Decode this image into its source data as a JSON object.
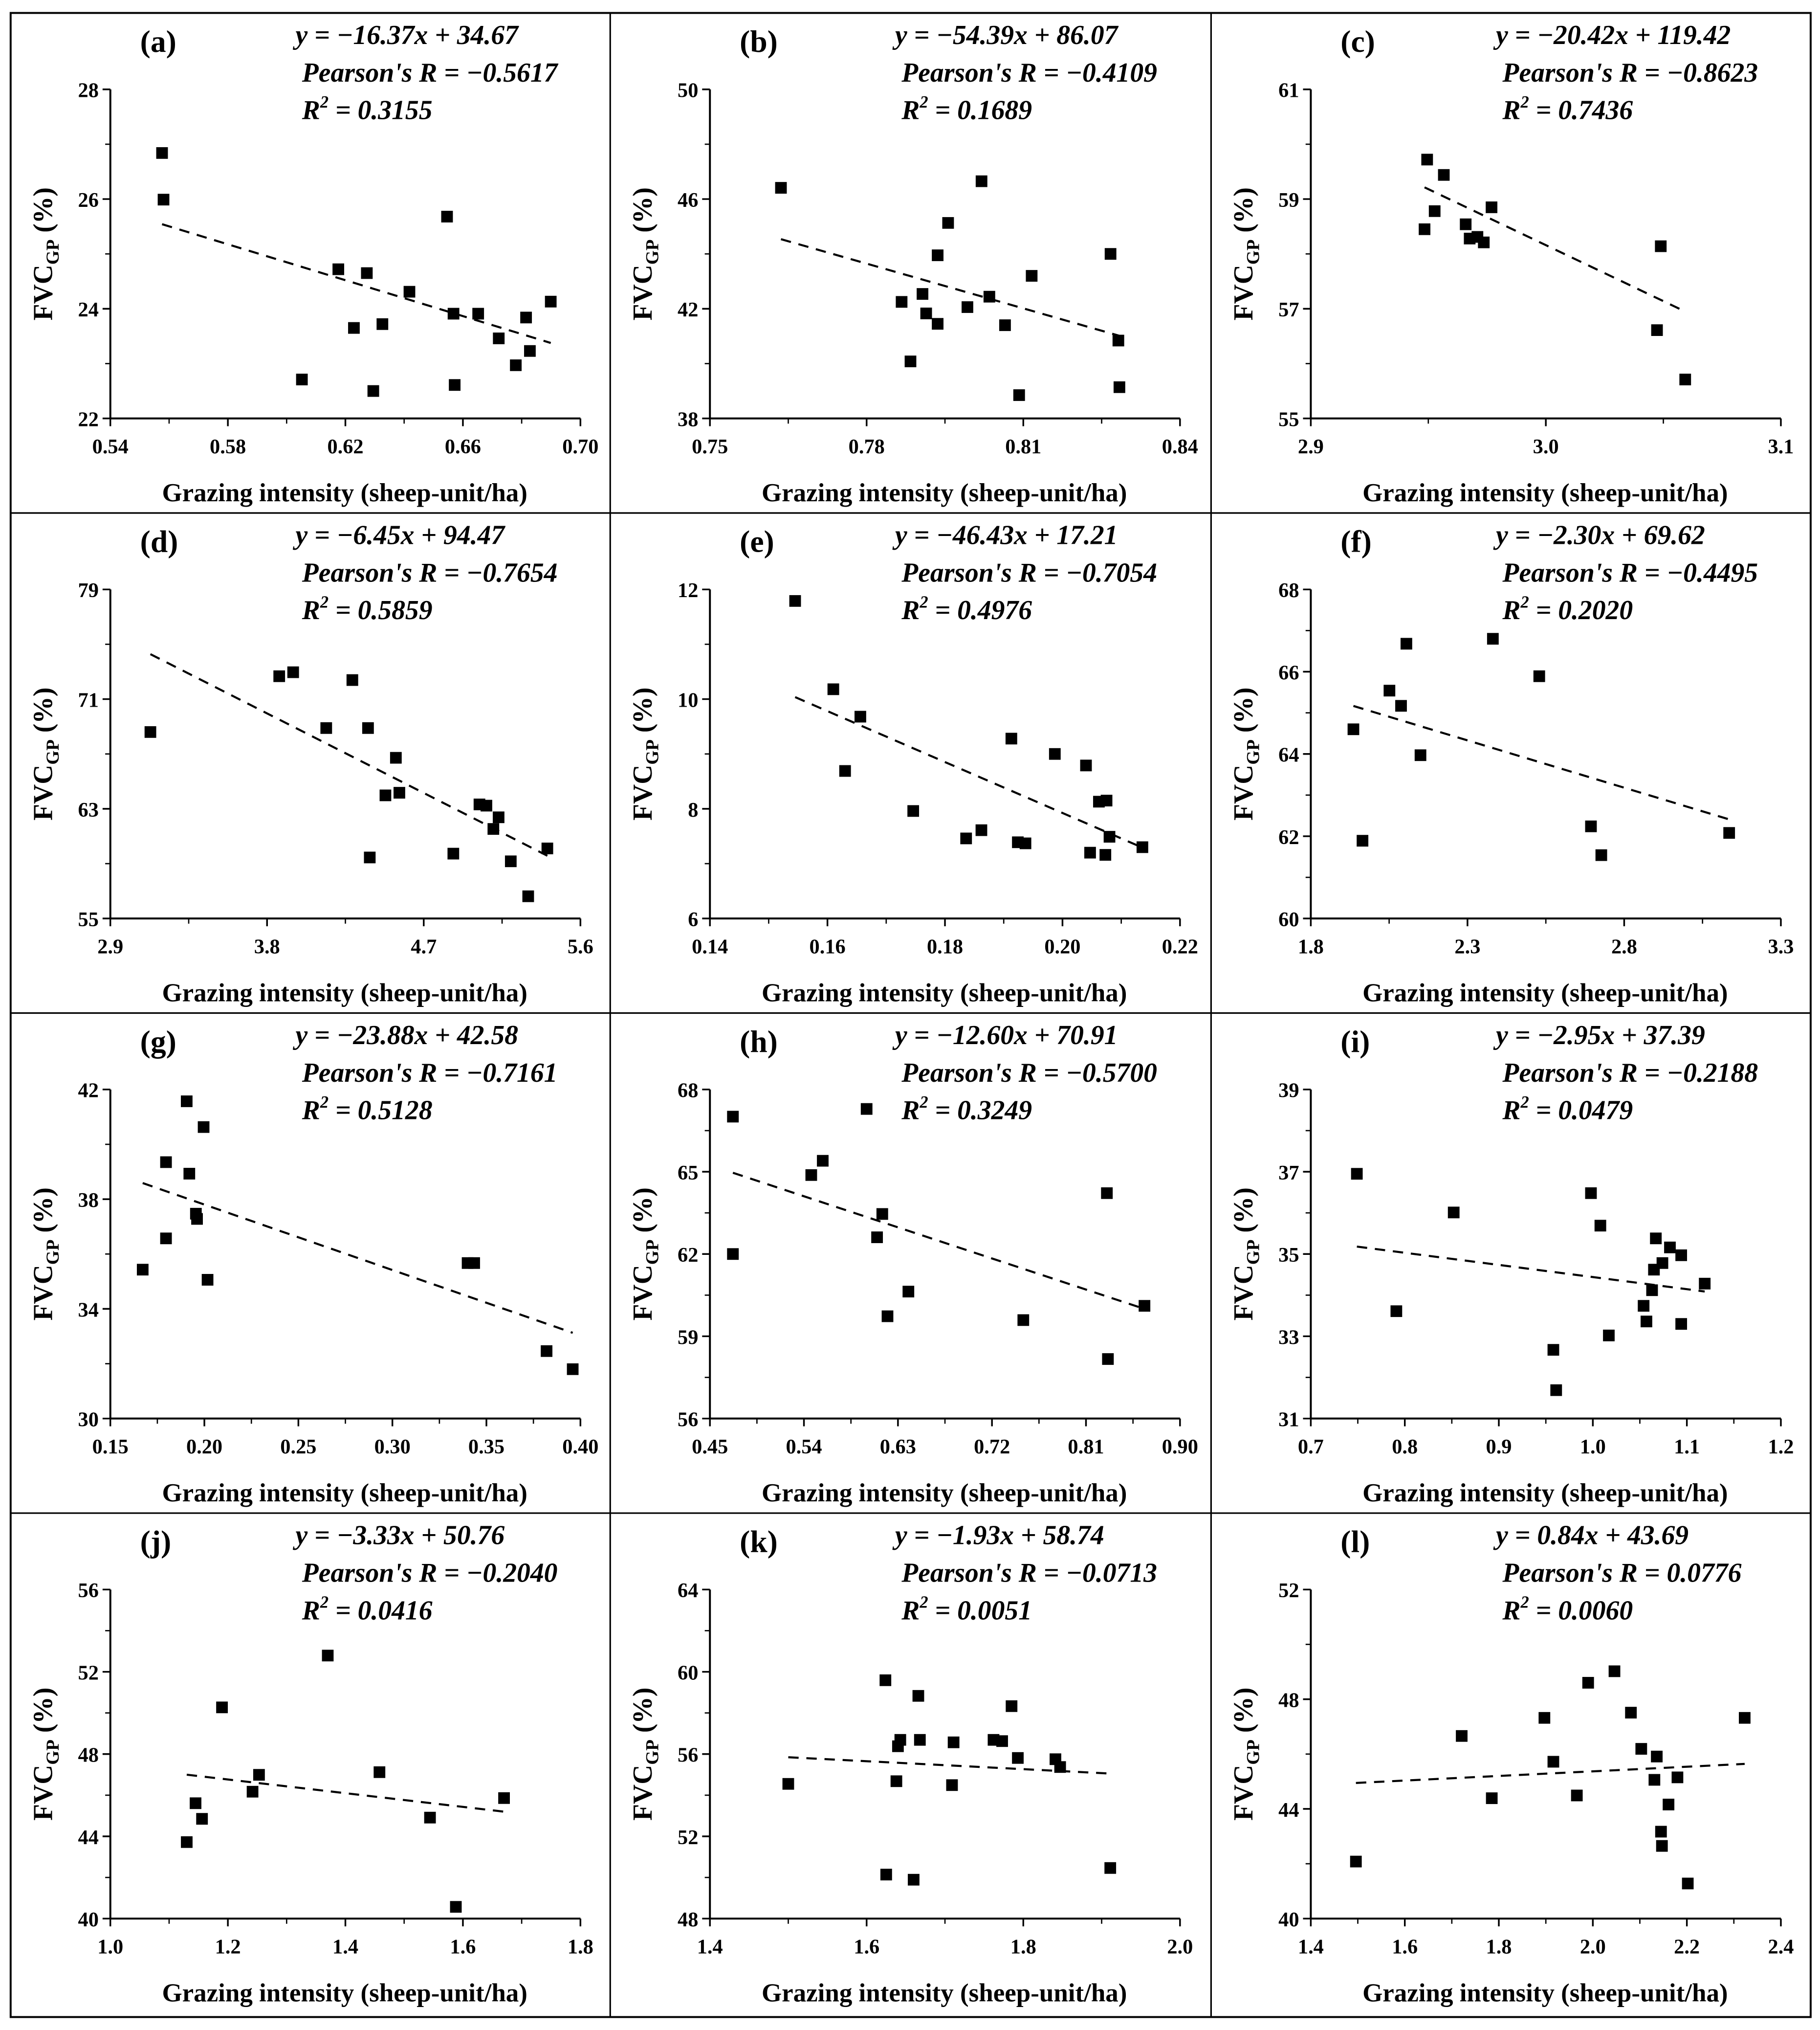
{
  "chart_data": [
    {
      "type": "scatter",
      "label": "(a)",
      "equation": "y = −16.37x + 34.67",
      "pearson": "Pearson's R = −0.5617",
      "r2": "0.3155",
      "slope": -16.37,
      "intercept": 34.67,
      "xlabel": "Grazing intensity (sheep-unit/ha)",
      "ylabel": "FVC",
      "ylabel_sub": "GP",
      "ylabel_unit": " (%)",
      "xlim": [
        0.54,
        0.7
      ],
      "ylim": [
        22,
        28
      ],
      "xticks": [
        "0.54",
        "0.58",
        "0.62",
        "0.66",
        "0.70"
      ],
      "yticks": [
        "22",
        "24",
        "26",
        "28"
      ],
      "points": [
        [
          0.5576,
          26.84
        ],
        [
          0.5581,
          25.99
        ],
        [
          0.6052,
          22.71
        ],
        [
          0.6176,
          24.72
        ],
        [
          0.6229,
          23.65
        ],
        [
          0.6273,
          24.65
        ],
        [
          0.6295,
          22.5
        ],
        [
          0.6326,
          23.72
        ],
        [
          0.6418,
          24.31
        ],
        [
          0.6546,
          25.68
        ],
        [
          0.6568,
          23.91
        ],
        [
          0.6572,
          22.61
        ],
        [
          0.6652,
          23.91
        ],
        [
          0.6722,
          23.46
        ],
        [
          0.678,
          22.97
        ],
        [
          0.6815,
          23.84
        ],
        [
          0.6828,
          23.23
        ],
        [
          0.6899,
          24.13
        ]
      ]
    },
    {
      "type": "scatter",
      "label": "(b)",
      "equation": "y = −54.39x + 86.07",
      "pearson": "Pearson's R = −0.4109",
      "r2": "0.1689",
      "slope": -54.39,
      "intercept": 86.07,
      "xlabel": "Grazing intensity (sheep-unit/ha)",
      "ylabel": "FVC",
      "ylabel_sub": "GP",
      "ylabel_unit": " (%)",
      "xlim": [
        0.75,
        0.84
      ],
      "ylim": [
        38,
        50
      ],
      "xticks": [
        "0.75",
        "0.78",
        "0.81",
        "0.84"
      ],
      "yticks": [
        "38",
        "42",
        "46",
        "50"
      ],
      "points": [
        [
          0.7636,
          46.41
        ],
        [
          0.7867,
          42.25
        ],
        [
          0.7884,
          40.08
        ],
        [
          0.7907,
          42.54
        ],
        [
          0.7914,
          41.83
        ],
        [
          0.7936,
          43.95
        ],
        [
          0.7936,
          41.45
        ],
        [
          0.7956,
          45.13
        ],
        [
          0.7993,
          42.06
        ],
        [
          0.802,
          46.65
        ],
        [
          0.8035,
          42.44
        ],
        [
          0.8065,
          41.4
        ],
        [
          0.8092,
          38.85
        ],
        [
          0.8116,
          43.2
        ],
        [
          0.8267,
          44.0
        ],
        [
          0.8282,
          40.84
        ],
        [
          0.8284,
          39.14
        ]
      ]
    },
    {
      "type": "scatter",
      "label": "(c)",
      "equation": "y = −20.42x + 119.42",
      "pearson": "Pearson's R = −0.8623",
      "r2": "0.7436",
      "slope": -20.42,
      "intercept": 119.42,
      "xlabel": "Grazing intensity (sheep-unit/ha)",
      "ylabel": "FVC",
      "ylabel_sub": "GP",
      "ylabel_unit": " (%)",
      "xlim": [
        2.9,
        3.1
      ],
      "ylim": [
        55,
        61
      ],
      "xticks": [
        "2.9",
        "3.0",
        "3.1"
      ],
      "yticks": [
        "55",
        "57",
        "59",
        "61"
      ],
      "points": [
        [
          2.9495,
          59.72
        ],
        [
          2.9566,
          59.44
        ],
        [
          2.9527,
          58.78
        ],
        [
          2.9484,
          58.45
        ],
        [
          2.9659,
          58.54
        ],
        [
          2.9676,
          58.28
        ],
        [
          2.9709,
          58.31
        ],
        [
          2.9736,
          58.21
        ],
        [
          2.9769,
          58.85
        ],
        [
          3.0489,
          58.14
        ],
        [
          3.0473,
          56.61
        ],
        [
          3.0593,
          55.71
        ]
      ]
    },
    {
      "type": "scatter",
      "label": "(d)",
      "equation": "y = −6.45x + 94.47",
      "pearson": "Pearson's R = −0.7654",
      "r2": "0.5859",
      "slope": -6.45,
      "intercept": 94.47,
      "xlabel": "Grazing intensity (sheep-unit/ha)",
      "ylabel": "FVC",
      "ylabel_sub": "GP",
      "ylabel_unit": " (%)",
      "xlim": [
        2.9,
        5.6
      ],
      "ylim": [
        55,
        79
      ],
      "xticks": [
        "2.9",
        "3.8",
        "4.7",
        "5.6"
      ],
      "yticks": [
        "55",
        "63",
        "71",
        "79"
      ],
      "points": [
        [
          3.13,
          68.6
        ],
        [
          3.87,
          72.67
        ],
        [
          3.95,
          72.96
        ],
        [
          4.14,
          68.89
        ],
        [
          4.29,
          72.39
        ],
        [
          4.38,
          68.89
        ],
        [
          4.39,
          59.45
        ],
        [
          4.48,
          63.98
        ],
        [
          4.54,
          66.72
        ],
        [
          4.56,
          64.17
        ],
        [
          4.87,
          59.73
        ],
        [
          5.02,
          63.32
        ],
        [
          5.06,
          63.23
        ],
        [
          5.1,
          61.53
        ],
        [
          5.13,
          62.38
        ],
        [
          5.2,
          59.17
        ],
        [
          5.3,
          56.62
        ],
        [
          5.41,
          60.11
        ]
      ]
    },
    {
      "type": "scatter",
      "label": "(e)",
      "equation": "y = −46.43x + 17.21",
      "pearson": "Pearson's R = −0.7054",
      "r2": "0.4976",
      "slope": -46.43,
      "intercept": 17.21,
      "xlabel": "Grazing intensity (sheep-unit/ha)",
      "ylabel": "FVC",
      "ylabel_sub": "GP",
      "ylabel_unit": " (%)",
      "xlim": [
        0.14,
        0.22
      ],
      "ylim": [
        6,
        12
      ],
      "xticks": [
        "0.14",
        "0.16",
        "0.18",
        "0.20",
        "0.22"
      ],
      "yticks": [
        "6",
        "8",
        "10",
        "12"
      ],
      "points": [
        [
          0.1545,
          11.79
        ],
        [
          0.161,
          10.18
        ],
        [
          0.163,
          8.69
        ],
        [
          0.1656,
          9.68
        ],
        [
          0.1746,
          7.96
        ],
        [
          0.1836,
          7.46
        ],
        [
          0.1862,
          7.61
        ],
        [
          0.1913,
          9.28
        ],
        [
          0.1924,
          7.39
        ],
        [
          0.1937,
          7.37
        ],
        [
          0.1987,
          9.0
        ],
        [
          0.204,
          8.79
        ],
        [
          0.2047,
          7.2
        ],
        [
          0.2062,
          8.13
        ],
        [
          0.2075,
          8.15
        ],
        [
          0.2073,
          7.16
        ],
        [
          0.208,
          7.49
        ],
        [
          0.2136,
          7.3
        ]
      ]
    },
    {
      "type": "scatter",
      "label": "(f)",
      "equation": "y = −2.30x + 69.62",
      "pearson": "Pearson's R = −0.4495",
      "r2": "0.2020",
      "slope": -2.3,
      "intercept": 69.62,
      "xlabel": "Grazing intensity (sheep-unit/ha)",
      "ylabel": "FVC",
      "ylabel_sub": "GP",
      "ylabel_unit": " (%)",
      "xlim": [
        1.8,
        3.3
      ],
      "ylim": [
        60,
        68
      ],
      "xticks": [
        "1.8",
        "2.3",
        "2.8",
        "3.3"
      ],
      "yticks": [
        "60",
        "62",
        "64",
        "66",
        "68"
      ],
      "points": [
        [
          1.936,
          64.6
        ],
        [
          1.965,
          61.89
        ],
        [
          2.051,
          65.54
        ],
        [
          2.088,
          65.17
        ],
        [
          2.105,
          66.68
        ],
        [
          2.15,
          63.97
        ],
        [
          2.381,
          66.8
        ],
        [
          2.529,
          65.89
        ],
        [
          2.694,
          62.24
        ],
        [
          2.727,
          61.54
        ],
        [
          3.135,
          62.08
        ]
      ]
    },
    {
      "type": "scatter",
      "label": "(g)",
      "equation": "y = −23.88x + 42.58",
      "pearson": "Pearson's R = −0.7161",
      "r2": "0.5128",
      "slope": -23.88,
      "intercept": 42.58,
      "xlabel": "Grazing intensity (sheep-unit/ha)",
      "ylabel": "FVC",
      "ylabel_sub": "GP",
      "ylabel_unit": " (%)",
      "xlim": [
        0.15,
        0.4
      ],
      "ylim": [
        30,
        42
      ],
      "xticks": [
        "0.15",
        "0.20",
        "0.25",
        "0.30",
        "0.35",
        "0.40"
      ],
      "yticks": [
        "30",
        "34",
        "38",
        "42"
      ],
      "points": [
        [
          0.1672,
          35.43
        ],
        [
          0.1796,
          39.35
        ],
        [
          0.1796,
          36.57
        ],
        [
          0.1906,
          41.57
        ],
        [
          0.192,
          38.93
        ],
        [
          0.1955,
          37.47
        ],
        [
          0.1961,
          37.28
        ],
        [
          0.1996,
          40.63
        ],
        [
          0.2017,
          35.06
        ],
        [
          0.34,
          35.67
        ],
        [
          0.3435,
          35.67
        ],
        [
          0.382,
          32.46
        ],
        [
          0.3959,
          31.8
        ]
      ]
    },
    {
      "type": "scatter",
      "label": "(h)",
      "equation": "y = −12.60x + 70.91",
      "pearson": "Pearson's R = −0.5700",
      "r2": "0.3249",
      "slope": -12.6,
      "intercept": 70.91,
      "xlabel": "Grazing intensity (sheep-unit/ha)",
      "ylabel": "FVC",
      "ylabel_sub": "GP",
      "ylabel_unit": " (%)",
      "xlim": [
        0.45,
        0.9
      ],
      "ylim": [
        56,
        68
      ],
      "xticks": [
        "0.45",
        "0.54",
        "0.63",
        "0.72",
        "0.81",
        "0.90"
      ],
      "yticks": [
        "56",
        "59",
        "62",
        "65",
        "68"
      ],
      "points": [
        [
          0.472,
          67.01
        ],
        [
          0.472,
          62.0
        ],
        [
          0.547,
          64.88
        ],
        [
          0.558,
          65.4
        ],
        [
          0.6,
          67.29
        ],
        [
          0.61,
          62.61
        ],
        [
          0.615,
          63.46
        ],
        [
          0.62,
          59.73
        ],
        [
          0.64,
          60.63
        ],
        [
          0.75,
          59.59
        ],
        [
          0.83,
          64.22
        ],
        [
          0.831,
          58.17
        ],
        [
          0.866,
          60.11
        ]
      ]
    },
    {
      "type": "scatter",
      "label": "(i)",
      "equation": "y = −2.95x + 37.39",
      "pearson": "Pearson's R = −0.2188",
      "r2": "0.0479",
      "slope": -2.95,
      "intercept": 37.39,
      "xlabel": "Grazing intensity (sheep-unit/ha)",
      "ylabel": "FVC",
      "ylabel_sub": "GP",
      "ylabel_unit": " (%)",
      "xlim": [
        0.7,
        1.2
      ],
      "ylim": [
        31,
        39
      ],
      "xticks": [
        "0.7",
        "0.8",
        "0.9",
        "1.0",
        "1.1",
        "1.2"
      ],
      "yticks": [
        "31",
        "33",
        "35",
        "37",
        "39"
      ],
      "points": [
        [
          0.749,
          36.95
        ],
        [
          0.791,
          33.61
        ],
        [
          0.852,
          36.01
        ],
        [
          0.958,
          32.67
        ],
        [
          0.961,
          31.69
        ],
        [
          0.998,
          36.48
        ],
        [
          1.008,
          35.69
        ],
        [
          1.017,
          33.02
        ],
        [
          1.054,
          33.74
        ],
        [
          1.057,
          33.36
        ],
        [
          1.063,
          34.12
        ],
        [
          1.065,
          34.62
        ],
        [
          1.067,
          35.38
        ],
        [
          1.074,
          34.78
        ],
        [
          1.082,
          35.16
        ],
        [
          1.094,
          34.97
        ],
        [
          1.094,
          33.3
        ],
        [
          1.119,
          34.28
        ]
      ]
    },
    {
      "type": "scatter",
      "label": "(j)",
      "equation": "y = −3.33x + 50.76",
      "pearson": "Pearson's R = −0.2040",
      "r2": "0.0416",
      "slope": -3.33,
      "intercept": 50.76,
      "xlabel": "Grazing intensity (sheep-unit/ha)",
      "ylabel": "FVC",
      "ylabel_sub": "GP",
      "ylabel_unit": " (%)",
      "xlim": [
        1.0,
        1.8
      ],
      "ylim": [
        40,
        56
      ],
      "xticks": [
        "1.0",
        "1.2",
        "1.4",
        "1.6",
        "1.8"
      ],
      "yticks": [
        "40",
        "44",
        "48",
        "52",
        "56"
      ],
      "points": [
        [
          1.13,
          43.72
        ],
        [
          1.145,
          45.61
        ],
        [
          1.156,
          44.85
        ],
        [
          1.19,
          50.27
        ],
        [
          1.242,
          46.17
        ],
        [
          1.253,
          46.99
        ],
        [
          1.37,
          52.79
        ],
        [
          1.458,
          47.12
        ],
        [
          1.544,
          44.91
        ],
        [
          1.588,
          40.57
        ],
        [
          1.67,
          45.86
        ]
      ]
    },
    {
      "type": "scatter",
      "label": "(k)",
      "equation": "y = −1.93x + 58.74",
      "pearson": "Pearson's R = −0.0713",
      "r2": "0.0051",
      "slope": -1.93,
      "intercept": 58.74,
      "xlabel": "Grazing intensity (sheep-unit/ha)",
      "ylabel": "FVC",
      "ylabel_sub": "GP",
      "ylabel_unit": " (%)",
      "xlim": [
        1.4,
        2.0
      ],
      "ylim": [
        48,
        64
      ],
      "xticks": [
        "1.4",
        "1.6",
        "1.8",
        "2.0"
      ],
      "yticks": [
        "48",
        "52",
        "56",
        "60",
        "64"
      ],
      "points": [
        [
          1.5,
          54.55
        ],
        [
          1.624,
          59.59
        ],
        [
          1.625,
          50.14
        ],
        [
          1.638,
          54.68
        ],
        [
          1.64,
          56.38
        ],
        [
          1.643,
          56.69
        ],
        [
          1.66,
          49.89
        ],
        [
          1.666,
          58.83
        ],
        [
          1.668,
          56.69
        ],
        [
          1.711,
          56.57
        ],
        [
          1.709,
          54.49
        ],
        [
          1.762,
          56.69
        ],
        [
          1.773,
          56.63
        ],
        [
          1.785,
          58.33
        ],
        [
          1.793,
          55.81
        ],
        [
          1.841,
          55.75
        ],
        [
          1.847,
          55.37
        ],
        [
          1.911,
          50.46
        ]
      ]
    },
    {
      "type": "scatter",
      "label": "(l)",
      "equation": "y = 0.84x + 43.69",
      "pearson": "Pearson's R = 0.0776",
      "r2": "0.0060",
      "slope": 0.84,
      "intercept": 43.69,
      "xlabel": "Grazing intensity (sheep-unit/ha)",
      "ylabel": "FVC",
      "ylabel_sub": "GP",
      "ylabel_unit": " (%)",
      "xlim": [
        1.4,
        2.4
      ],
      "ylim": [
        40,
        52
      ],
      "xticks": [
        "1.4",
        "1.6",
        "1.8",
        "2.0",
        "2.2",
        "2.4"
      ],
      "yticks": [
        "40",
        "44",
        "48",
        "52"
      ],
      "points": [
        [
          1.496,
          42.08
        ],
        [
          1.721,
          46.66
        ],
        [
          1.785,
          44.39
        ],
        [
          1.897,
          47.32
        ],
        [
          1.916,
          45.72
        ],
        [
          1.966,
          44.49
        ],
        [
          1.99,
          48.6
        ],
        [
          2.046,
          49.02
        ],
        [
          2.081,
          47.51
        ],
        [
          2.103,
          46.19
        ],
        [
          2.131,
          45.06
        ],
        [
          2.136,
          45.91
        ],
        [
          2.145,
          43.17
        ],
        [
          2.147,
          42.65
        ],
        [
          2.161,
          44.16
        ],
        [
          2.18,
          45.15
        ],
        [
          2.202,
          41.28
        ],
        [
          2.323,
          47.32
        ]
      ]
    }
  ]
}
